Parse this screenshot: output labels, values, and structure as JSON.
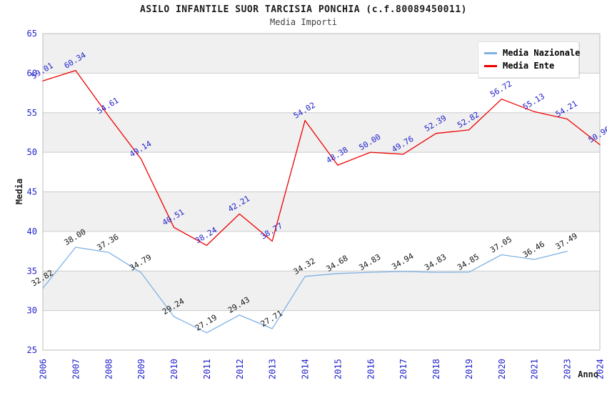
{
  "header": {
    "title": "ASILO INFANTILE SUOR TARCISIA PONCHIA (c.f.80089450011)",
    "subtitle": "Media Importi"
  },
  "legend": {
    "items": [
      {
        "label": "Media Nazionale",
        "color": "#7fb2e4"
      },
      {
        "label": "Media Ente",
        "color": "#ee0000"
      }
    ]
  },
  "axes": {
    "y_label": "Media",
    "x_label": "Anno",
    "y_ticks": [
      65,
      60,
      55,
      50,
      45,
      40,
      35,
      30,
      25
    ],
    "tick_color": "#2222cc",
    "axis_title_color": "#1c1c1c"
  },
  "chart_data": {
    "type": "line",
    "title": "ASILO INFANTILE SUOR TARCISIA PONCHIA (c.f.80089450011)",
    "subtitle": "Media Importi",
    "xlabel": "Anno",
    "ylabel": "Media",
    "ylim": [
      25,
      65
    ],
    "y_step": 5,
    "grid": true,
    "legend_position": "top-right",
    "band_colors": [
      "#f0f0f0",
      "#ffffff"
    ],
    "grid_color": "#cccccc",
    "border_color": "#bdbdbd",
    "categories": [
      "2006",
      "2007",
      "2008",
      "2009",
      "2010",
      "2011",
      "2012",
      "2013",
      "2014",
      "2015",
      "2016",
      "2017",
      "2018",
      "2019",
      "2020",
      "2021",
      "2023",
      "2024"
    ],
    "series": [
      {
        "name": "Media Nazionale",
        "color": "#7fb2e4",
        "label_color": "#161616",
        "values": [
          32.82,
          38.0,
          37.36,
          34.79,
          29.24,
          27.19,
          29.43,
          27.71,
          34.32,
          34.68,
          34.83,
          34.94,
          34.83,
          34.85,
          37.05,
          36.46,
          37.49,
          null
        ]
      },
      {
        "name": "Media Ente",
        "color": "#ee0000",
        "label_color": "#2222cc",
        "values": [
          59.01,
          60.34,
          54.61,
          49.14,
          40.51,
          38.24,
          42.21,
          38.77,
          54.02,
          48.38,
          50.0,
          49.76,
          52.39,
          52.82,
          56.72,
          55.13,
          54.21,
          50.96
        ]
      }
    ]
  }
}
